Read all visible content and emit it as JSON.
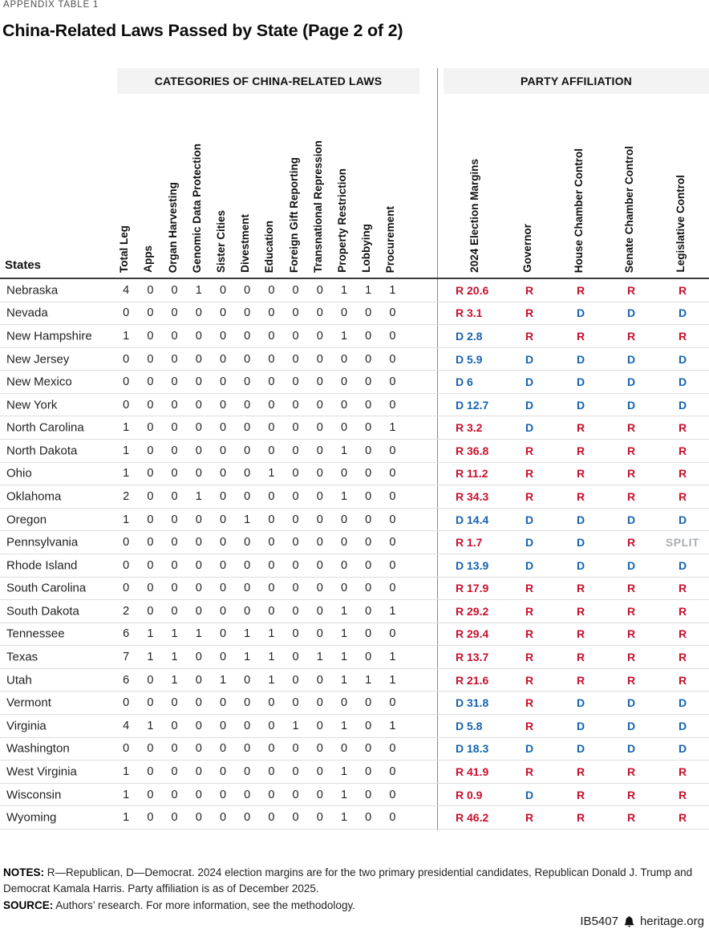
{
  "page": {
    "appendix_label": "APPENDIX TABLE 1",
    "title": "China-Related Laws Passed by State (Page 2 of 2)"
  },
  "table": {
    "section_headers": {
      "categories": "CATEGORIES OF CHINA-RELATED LAWS",
      "party": "PARTY AFFILIATION"
    },
    "states_label": "States",
    "category_columns": [
      "Total Leg",
      "Apps",
      "Organ Harvesting",
      "Genomic Data Protection",
      "Sister Cities",
      "Divestment",
      "Education",
      "Foreign Gift Reporting",
      "Transnational Repression",
      "Property Restriction",
      "Lobbying",
      "Procurement"
    ],
    "party_columns": [
      "2024 Election Margins",
      "Governor",
      "House Chamber Control",
      "Senate Chamber Control",
      "Legislative Control"
    ],
    "rows": [
      {
        "state": "Nebraska",
        "values": [
          4,
          0,
          0,
          1,
          0,
          0,
          0,
          0,
          0,
          1,
          1,
          1
        ],
        "margin": "R 20.6",
        "governor": "R",
        "house": "R",
        "senate": "R",
        "legislative": "R"
      },
      {
        "state": "Nevada",
        "values": [
          0,
          0,
          0,
          0,
          0,
          0,
          0,
          0,
          0,
          0,
          0,
          0
        ],
        "margin": "R 3.1",
        "governor": "R",
        "house": "D",
        "senate": "D",
        "legislative": "D"
      },
      {
        "state": "New Hampshire",
        "values": [
          1,
          0,
          0,
          0,
          0,
          0,
          0,
          0,
          0,
          1,
          0,
          0
        ],
        "margin": "D 2.8",
        "governor": "R",
        "house": "R",
        "senate": "R",
        "legislative": "R"
      },
      {
        "state": "New Jersey",
        "values": [
          0,
          0,
          0,
          0,
          0,
          0,
          0,
          0,
          0,
          0,
          0,
          0
        ],
        "margin": "D 5.9",
        "governor": "D",
        "house": "D",
        "senate": "D",
        "legislative": "D"
      },
      {
        "state": "New Mexico",
        "values": [
          0,
          0,
          0,
          0,
          0,
          0,
          0,
          0,
          0,
          0,
          0,
          0
        ],
        "margin": "D 6",
        "governor": "D",
        "house": "D",
        "senate": "D",
        "legislative": "D"
      },
      {
        "state": "New York",
        "values": [
          0,
          0,
          0,
          0,
          0,
          0,
          0,
          0,
          0,
          0,
          0,
          0
        ],
        "margin": "D 12.7",
        "governor": "D",
        "house": "D",
        "senate": "D",
        "legislative": "D"
      },
      {
        "state": "North Carolina",
        "values": [
          1,
          0,
          0,
          0,
          0,
          0,
          0,
          0,
          0,
          0,
          0,
          1
        ],
        "margin": "R 3.2",
        "governor": "D",
        "house": "R",
        "senate": "R",
        "legislative": "R"
      },
      {
        "state": "North Dakota",
        "values": [
          1,
          0,
          0,
          0,
          0,
          0,
          0,
          0,
          0,
          1,
          0,
          0
        ],
        "margin": "R 36.8",
        "governor": "R",
        "house": "R",
        "senate": "R",
        "legislative": "R"
      },
      {
        "state": "Ohio",
        "values": [
          1,
          0,
          0,
          0,
          0,
          0,
          1,
          0,
          0,
          0,
          0,
          0
        ],
        "margin": "R 11.2",
        "governor": "R",
        "house": "R",
        "senate": "R",
        "legislative": "R"
      },
      {
        "state": "Oklahoma",
        "values": [
          2,
          0,
          0,
          1,
          0,
          0,
          0,
          0,
          0,
          1,
          0,
          0
        ],
        "margin": "R 34.3",
        "governor": "R",
        "house": "R",
        "senate": "R",
        "legislative": "R"
      },
      {
        "state": "Oregon",
        "values": [
          1,
          0,
          0,
          0,
          0,
          1,
          0,
          0,
          0,
          0,
          0,
          0
        ],
        "margin": "D 14.4",
        "governor": "D",
        "house": "D",
        "senate": "D",
        "legislative": "D"
      },
      {
        "state": "Pennsylvania",
        "values": [
          0,
          0,
          0,
          0,
          0,
          0,
          0,
          0,
          0,
          0,
          0,
          0
        ],
        "margin": "R 1.7",
        "governor": "D",
        "house": "D",
        "senate": "R",
        "legislative": "SPLIT"
      },
      {
        "state": "Rhode Island",
        "values": [
          0,
          0,
          0,
          0,
          0,
          0,
          0,
          0,
          0,
          0,
          0,
          0
        ],
        "margin": "D 13.9",
        "governor": "D",
        "house": "D",
        "senate": "D",
        "legislative": "D"
      },
      {
        "state": "South Carolina",
        "values": [
          0,
          0,
          0,
          0,
          0,
          0,
          0,
          0,
          0,
          0,
          0,
          0
        ],
        "margin": "R 17.9",
        "governor": "R",
        "house": "R",
        "senate": "R",
        "legislative": "R"
      },
      {
        "state": "South Dakota",
        "values": [
          2,
          0,
          0,
          0,
          0,
          0,
          0,
          0,
          0,
          1,
          0,
          1
        ],
        "margin": "R 29.2",
        "governor": "R",
        "house": "R",
        "senate": "R",
        "legislative": "R"
      },
      {
        "state": "Tennessee",
        "values": [
          6,
          1,
          1,
          1,
          0,
          1,
          1,
          0,
          0,
          1,
          0,
          0
        ],
        "margin": "R 29.4",
        "governor": "R",
        "house": "R",
        "senate": "R",
        "legislative": "R"
      },
      {
        "state": "Texas",
        "values": [
          7,
          1,
          1,
          0,
          0,
          1,
          1,
          0,
          1,
          1,
          0,
          1
        ],
        "margin": "R 13.7",
        "governor": "R",
        "house": "R",
        "senate": "R",
        "legislative": "R"
      },
      {
        "state": "Utah",
        "values": [
          6,
          0,
          1,
          0,
          1,
          0,
          1,
          0,
          0,
          1,
          1,
          1
        ],
        "margin": "R 21.6",
        "governor": "R",
        "house": "R",
        "senate": "R",
        "legislative": "R"
      },
      {
        "state": "Vermont",
        "values": [
          0,
          0,
          0,
          0,
          0,
          0,
          0,
          0,
          0,
          0,
          0,
          0
        ],
        "margin": "D 31.8",
        "governor": "R",
        "house": "D",
        "senate": "D",
        "legislative": "D"
      },
      {
        "state": "Virginia",
        "values": [
          4,
          1,
          0,
          0,
          0,
          0,
          0,
          1,
          0,
          1,
          0,
          1
        ],
        "margin": "D 5.8",
        "governor": "R",
        "house": "D",
        "senate": "D",
        "legislative": "D"
      },
      {
        "state": "Washington",
        "values": [
          0,
          0,
          0,
          0,
          0,
          0,
          0,
          0,
          0,
          0,
          0,
          0
        ],
        "margin": "D 18.3",
        "governor": "D",
        "house": "D",
        "senate": "D",
        "legislative": "D"
      },
      {
        "state": "West Virginia",
        "values": [
          1,
          0,
          0,
          0,
          0,
          0,
          0,
          0,
          0,
          1,
          0,
          0
        ],
        "margin": "R 41.9",
        "governor": "R",
        "house": "R",
        "senate": "R",
        "legislative": "R"
      },
      {
        "state": "Wisconsin",
        "values": [
          1,
          0,
          0,
          0,
          0,
          0,
          0,
          0,
          0,
          1,
          0,
          0
        ],
        "margin": "R 0.9",
        "governor": "D",
        "house": "R",
        "senate": "R",
        "legislative": "R"
      },
      {
        "state": "Wyoming",
        "values": [
          1,
          0,
          0,
          0,
          0,
          0,
          0,
          0,
          0,
          1,
          0,
          0
        ],
        "margin": "R 46.2",
        "governor": "R",
        "house": "R",
        "senate": "R",
        "legislative": "R"
      }
    ]
  },
  "notes": {
    "notes_label": "NOTES:",
    "notes_text": " R—Republican, D—Democrat. 2024 election margins are for the two primary presidential candidates, Republican Donald J. Trump and Democrat Kamala Harris. Party affiliation is as of December 2025.",
    "source_label": "SOURCE:",
    "source_text": " Authors’ research. For more information, see the methodology."
  },
  "footer": {
    "doc_id": "IB5407",
    "site": "heritage.org",
    "bell_icon": "heritage-bell-icon"
  },
  "colors": {
    "republican": "#C8102E",
    "democrat": "#1563AF",
    "split": "#ABAFB3",
    "header_bg": "#F3F3F3"
  }
}
